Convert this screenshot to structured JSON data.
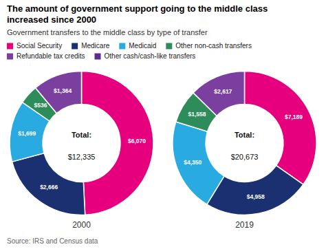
{
  "chart_data": {
    "type": "pie",
    "title": "The amount of government support going to the middle class\nincreased since 2000",
    "subtitle": "Government transfers to the middle class by type of transfer",
    "source": "Source: IRS and Census data",
    "categories": [
      "Social Security",
      "Medicare",
      "Medicaid",
      "Other non-cash transfers",
      "Refundable tax credits",
      "Other cash/cash-like transfers"
    ],
    "colors": [
      "#e6007e",
      "#1a3070",
      "#29abe2",
      "#2d8c5a",
      "#7b3fa0",
      "#5b2d8e"
    ],
    "legend": "top",
    "data_labels": true,
    "series": [
      {
        "name": "2000",
        "values": [
          6070,
          2666,
          1699,
          536,
          1364,
          null
        ],
        "value_labels": [
          "$6,070",
          "$2,666",
          "$1,699",
          "$536",
          "$1,364",
          null
        ],
        "total_title": "Total:",
        "total_label": "$12,335"
      },
      {
        "name": "2019",
        "values": [
          7189,
          4958,
          4350,
          1558,
          2617,
          null
        ],
        "value_labels": [
          "$7,189",
          "$4,958",
          "$4,350",
          "$1,558",
          "$2,617",
          null
        ],
        "total_title": "Total:",
        "total_label": "$20,673"
      }
    ]
  }
}
